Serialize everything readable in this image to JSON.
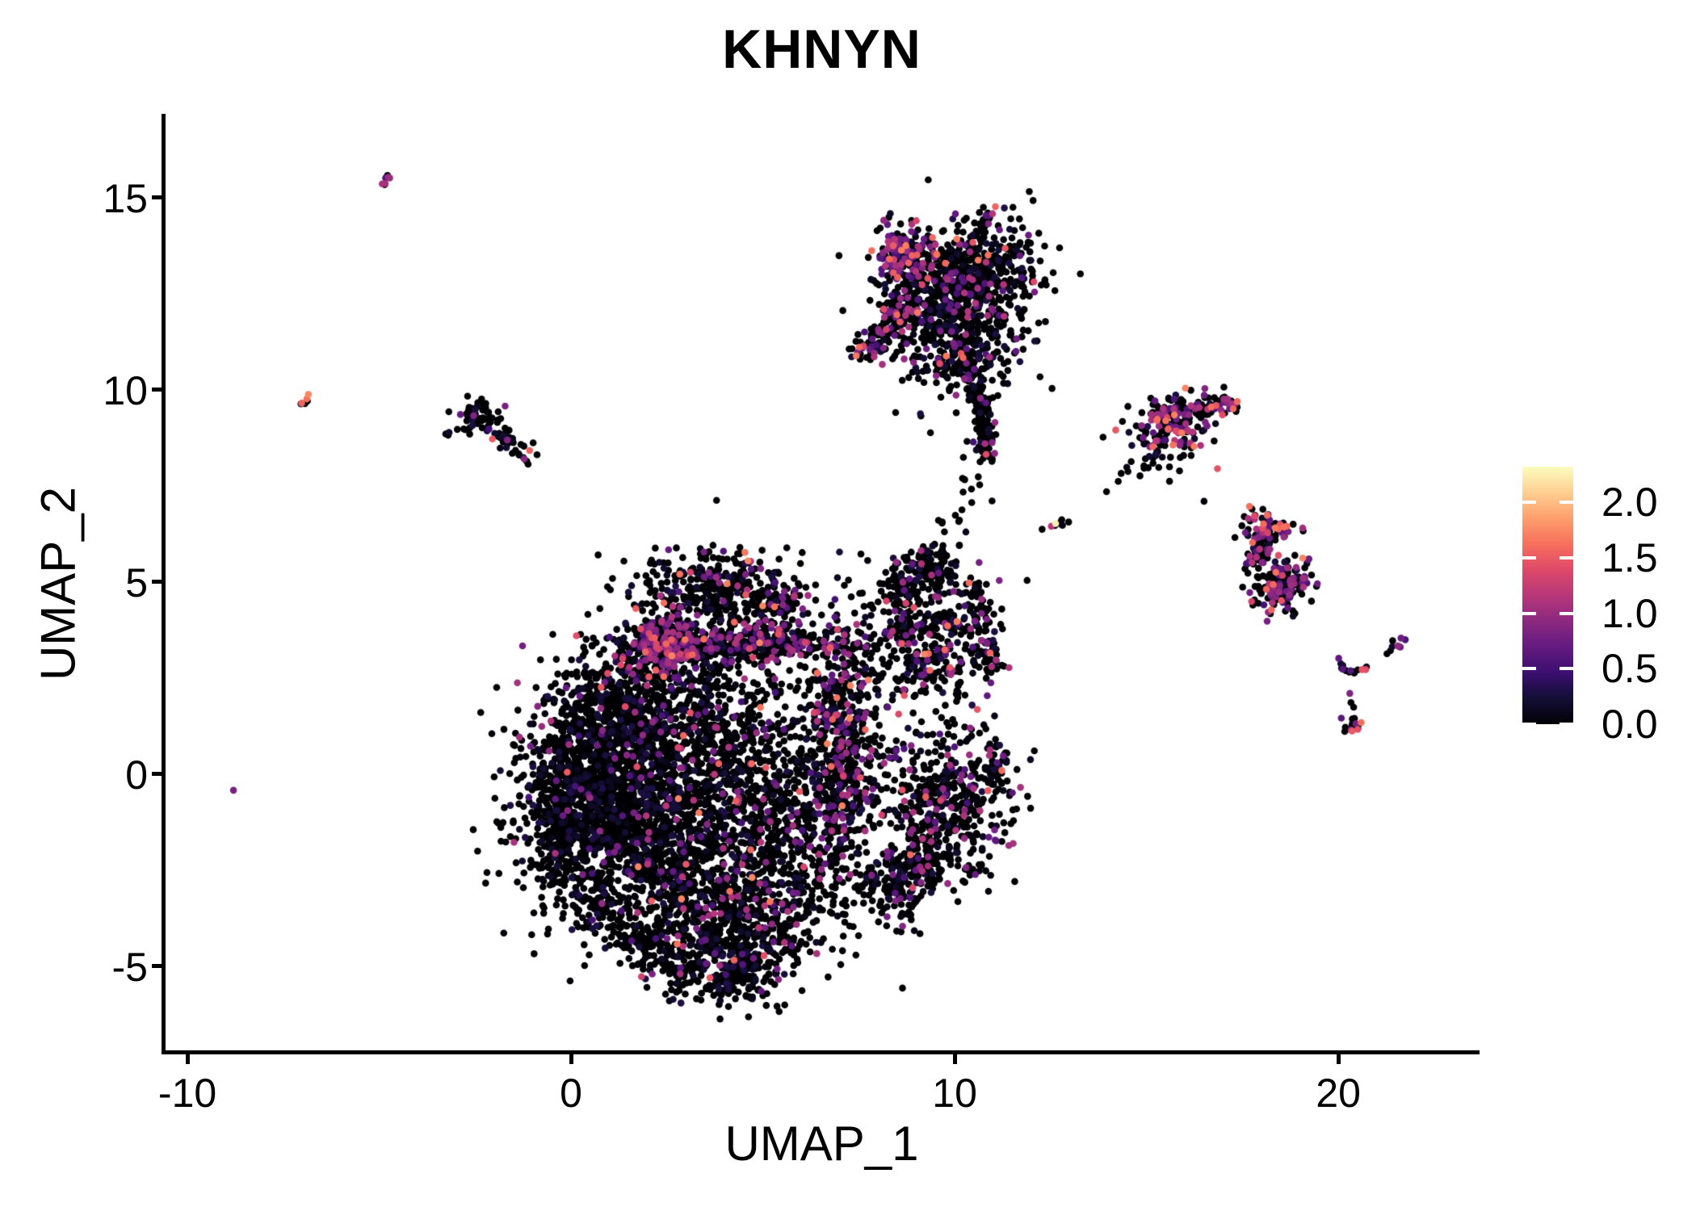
{
  "chart_data": {
    "type": "scatter",
    "title": "KHNYN",
    "xlabel": "UMAP_1",
    "ylabel": "UMAP_2",
    "xlim": [
      -10.57,
      23.64
    ],
    "ylim": [
      -7.23,
      17.14
    ],
    "x_ticks": [
      -10,
      0,
      10,
      20
    ],
    "y_ticks": [
      -5,
      0,
      5,
      10,
      15
    ],
    "grid": false,
    "background": "#ffffff",
    "axis_color": "#000000",
    "point_radius_px": 4.3,
    "seed": 1234,
    "legend_position": "right",
    "colorbar": {
      "min": 0,
      "max": 2.32,
      "ticks": [
        0.0,
        0.5,
        1.0,
        1.5,
        2.0
      ],
      "tick_labels": [
        "0.0",
        "0.5",
        "1.0",
        "1.5",
        "2.0"
      ]
    },
    "colormap": {
      "name": "magma",
      "stops": [
        [
          0.0,
          "#000004"
        ],
        [
          0.1,
          "#140e36"
        ],
        [
          0.2,
          "#3b0f70"
        ],
        [
          0.3,
          "#641a80"
        ],
        [
          0.4,
          "#8c2981"
        ],
        [
          0.5,
          "#b73779"
        ],
        [
          0.6,
          "#de4968"
        ],
        [
          0.7,
          "#f7705c"
        ],
        [
          0.8,
          "#fe9f6d"
        ],
        [
          0.9,
          "#fecf92"
        ],
        [
          1.0,
          "#fcfdbf"
        ]
      ]
    },
    "clusters": [
      {
        "name": "main-left-core",
        "shape": "gauss",
        "center": [
          0.9,
          -0.6
        ],
        "sigma": [
          1.15,
          1.5
        ],
        "n": 1450,
        "colored_frac": 0.03
      },
      {
        "name": "main-left-upper",
        "shape": "gauss",
        "center": [
          1.4,
          1.7
        ],
        "sigma": [
          0.9,
          0.75
        ],
        "n": 420,
        "colored_frac": 0.05
      },
      {
        "name": "main-mid-core",
        "shape": "gauss",
        "center": [
          3.9,
          0.6
        ],
        "sigma": [
          1.4,
          1.6
        ],
        "n": 950,
        "colored_frac": 0.07
      },
      {
        "name": "main-purple-band",
        "shape": "gauss",
        "center": [
          4.5,
          3.4
        ],
        "sigma": [
          1.55,
          0.24
        ],
        "n": 400,
        "colored_frac": 0.28
      },
      {
        "name": "main-band-left",
        "shape": "gauss",
        "center": [
          2.4,
          3.3
        ],
        "sigma": [
          0.55,
          0.42
        ],
        "n": 250,
        "colored_frac": 0.45
      },
      {
        "name": "main-head",
        "shape": "gauss",
        "center": [
          3.7,
          4.8
        ],
        "sigma": [
          1.0,
          0.5
        ],
        "n": 320,
        "colored_frac": 0.1
      },
      {
        "name": "main-head-right",
        "shape": "gauss",
        "center": [
          5.35,
          4.4
        ],
        "sigma": [
          0.45,
          0.35
        ],
        "n": 90,
        "colored_frac": 0.1
      },
      {
        "name": "main-right-band",
        "shape": "gauss",
        "center": [
          7.1,
          1.0
        ],
        "sigma": [
          0.42,
          1.65
        ],
        "n": 500,
        "colored_frac": 0.2
      },
      {
        "name": "main-bottom-lobe",
        "shape": "gauss",
        "center": [
          4.3,
          -3.6
        ],
        "sigma": [
          1.25,
          1.0
        ],
        "n": 800,
        "colored_frac": 0.08
      },
      {
        "name": "main-bottom-tip",
        "shape": "gauss",
        "center": [
          4.3,
          -5.1
        ],
        "sigma": [
          0.6,
          0.42
        ],
        "n": 150,
        "colored_frac": 0.06
      },
      {
        "name": "main-mid-right",
        "shape": "gauss",
        "center": [
          5.9,
          -1.3
        ],
        "sigma": [
          0.95,
          1.0
        ],
        "n": 360,
        "colored_frac": 0.08
      },
      {
        "name": "main-left-rim",
        "shape": "streak",
        "from": [
          -0.45,
          -2.6
        ],
        "to": [
          -0.15,
          0.9
        ],
        "jitter": 0.25,
        "n": 220,
        "colored_frac": 0.02
      },
      {
        "name": "main-bl-rim",
        "shape": "streak",
        "from": [
          0.3,
          -3.1
        ],
        "to": [
          3.2,
          -5.5
        ],
        "jitter": 0.32,
        "n": 200,
        "colored_frac": 0.05
      },
      {
        "name": "main-fill",
        "shape": "gauss",
        "center": [
          2.6,
          -1.9
        ],
        "sigma": [
          0.8,
          0.9
        ],
        "n": 300,
        "colored_frac": 0.05
      },
      {
        "name": "lowright-core",
        "shape": "gauss",
        "center": [
          9.7,
          -0.8
        ],
        "sigma": [
          0.85,
          1.0
        ],
        "n": 500,
        "colored_frac": 0.14
      },
      {
        "name": "lowright-arm",
        "shape": "streak",
        "from": [
          8.25,
          -3.55
        ],
        "to": [
          9.35,
          -2.0
        ],
        "jitter": 0.3,
        "n": 130,
        "colored_frac": 0.1
      },
      {
        "name": "lowright-edge",
        "shape": "streak",
        "from": [
          10.9,
          -0.2
        ],
        "to": [
          11.3,
          0.6
        ],
        "jitter": 0.18,
        "n": 36,
        "colored_frac": 0.1
      },
      {
        "name": "lowright-bridge",
        "shape": "streak",
        "from": [
          7.6,
          -2.9
        ],
        "to": [
          8.7,
          -2.3
        ],
        "jitter": 0.3,
        "n": 60,
        "colored_frac": 0.06
      },
      {
        "name": "rightmid-core",
        "shape": "gauss",
        "center": [
          9.4,
          3.4
        ],
        "sigma": [
          0.8,
          0.85
        ],
        "n": 370,
        "colored_frac": 0.16,
        "pink_frac": 0.18
      },
      {
        "name": "rightmid-ridge",
        "shape": "streak",
        "from": [
          8.05,
          4.6
        ],
        "to": [
          9.5,
          5.5
        ],
        "jitter": 0.26,
        "n": 110,
        "colored_frac": 0.15
      },
      {
        "name": "rightmid-edge",
        "shape": "streak",
        "from": [
          10.95,
          2.6
        ],
        "to": [
          10.55,
          5.1
        ],
        "jitter": 0.22,
        "n": 80,
        "colored_frac": 0.1
      },
      {
        "name": "rightmid-topknot",
        "shape": "gauss",
        "center": [
          9.55,
          5.4
        ],
        "sigma": [
          0.26,
          0.3
        ],
        "n": 55,
        "colored_frac": 0.1
      },
      {
        "name": "trail-up",
        "shape": "streak",
        "from": [
          9.85,
          6.0
        ],
        "to": [
          10.55,
          8.1
        ],
        "jitter": 0.28,
        "n": 24,
        "colored_frac": 0.05
      },
      {
        "name": "top-core",
        "shape": "gauss",
        "center": [
          10.0,
          12.1
        ],
        "sigma": [
          0.95,
          0.95
        ],
        "n": 680,
        "colored_frac": 0.13
      },
      {
        "name": "top-left-colored",
        "shape": "gauss",
        "center": [
          8.62,
          13.5
        ],
        "sigma": [
          0.38,
          0.4
        ],
        "n": 170,
        "colored_frac": 0.5,
        "pink_frac": 0.15
      },
      {
        "name": "top-right",
        "shape": "gauss",
        "center": [
          10.9,
          13.2
        ],
        "sigma": [
          0.68,
          0.55
        ],
        "n": 230,
        "colored_frac": 0.1
      },
      {
        "name": "top-beak",
        "shape": "streak",
        "from": [
          7.55,
          10.9
        ],
        "to": [
          8.95,
          12.35
        ],
        "jitter": 0.22,
        "n": 130,
        "colored_frac": 0.3
      },
      {
        "name": "top-tail",
        "shape": "streak",
        "from": [
          10.55,
          10.15
        ],
        "to": [
          10.85,
          8.4
        ],
        "jitter": 0.15,
        "n": 105,
        "colored_frac": 0.08
      },
      {
        "name": "top-spur",
        "shape": "streak",
        "from": [
          10.7,
          14.15
        ],
        "to": [
          10.95,
          14.72
        ],
        "jitter": 0.1,
        "n": 15,
        "colored_frac": 0.2
      },
      {
        "name": "top-bridge",
        "shape": "gauss",
        "center": [
          10.3,
          10.55
        ],
        "sigma": [
          0.4,
          0.3
        ],
        "n": 60,
        "colored_frac": 0.08
      },
      {
        "name": "chain-mid",
        "shape": "streak",
        "from": [
          12.3,
          6.35
        ],
        "to": [
          12.95,
          6.62
        ],
        "jitter": 0.06,
        "n": 7,
        "colored_frac": 0.0
      },
      {
        "name": "chain-upper",
        "shape": "streak",
        "from": [
          13.4,
          6.95
        ],
        "to": [
          14.9,
          8.1
        ],
        "jitter": 0.12,
        "n": 6,
        "colored_frac": 0.0
      },
      {
        "name": "upright-core",
        "shape": "gauss",
        "center": [
          15.75,
          9.15
        ],
        "sigma": [
          0.42,
          0.38
        ],
        "n": 165,
        "colored_frac": 0.4,
        "pink_frac": 0.2
      },
      {
        "name": "upright-arm",
        "shape": "streak",
        "from": [
          16.3,
          9.45
        ],
        "to": [
          17.35,
          9.7
        ],
        "jitter": 0.14,
        "n": 55,
        "colored_frac": 0.3,
        "pink_frac": 0.2
      },
      {
        "name": "upright-below",
        "shape": "gauss",
        "center": [
          15.05,
          8.5
        ],
        "sigma": [
          0.45,
          0.28
        ],
        "n": 40,
        "colored_frac": 0.05
      },
      {
        "name": "rightB-head",
        "shape": "gauss",
        "center": [
          18.1,
          6.35
        ],
        "sigma": [
          0.3,
          0.22
        ],
        "n": 70,
        "colored_frac": 0.45,
        "pink_frac": 0.3
      },
      {
        "name": "rightB-mid",
        "shape": "streak",
        "from": [
          17.85,
          5.5
        ],
        "to": [
          18.1,
          6.12
        ],
        "jitter": 0.17,
        "n": 55,
        "colored_frac": 0.3
      },
      {
        "name": "rightB-low",
        "shape": "gauss",
        "center": [
          18.55,
          4.95
        ],
        "sigma": [
          0.4,
          0.36
        ],
        "n": 150,
        "colored_frac": 0.4,
        "pink_frac": 0.08
      },
      {
        "name": "farright-dash",
        "shape": "streak",
        "from": [
          21.35,
          3.15
        ],
        "to": [
          21.68,
          3.5
        ],
        "jitter": 0.05,
        "n": 9,
        "colored_frac": 0.5
      },
      {
        "name": "farright-armL",
        "shape": "streak",
        "from": [
          19.9,
          3.0
        ],
        "to": [
          20.35,
          2.62
        ],
        "jitter": 0.07,
        "n": 8,
        "colored_frac": 0.25
      },
      {
        "name": "farright-armR",
        "shape": "streak",
        "from": [
          20.35,
          2.6
        ],
        "to": [
          20.8,
          2.86
        ],
        "jitter": 0.06,
        "n": 7,
        "colored_frac": 0.3
      },
      {
        "name": "farright-bottom",
        "shape": "gauss",
        "center": [
          20.33,
          1.2
        ],
        "sigma": [
          0.14,
          0.17
        ],
        "n": 13,
        "colored_frac": 0.35
      },
      {
        "name": "smallblack-core",
        "shape": "gauss",
        "center": [
          -2.35,
          9.3
        ],
        "sigma": [
          0.3,
          0.22
        ],
        "n": 55,
        "colored_frac": 0.02
      },
      {
        "name": "smallblack-arm",
        "shape": "streak",
        "from": [
          -2.1,
          8.9
        ],
        "to": [
          -1.12,
          8.32
        ],
        "jitter": 0.17,
        "n": 38,
        "colored_frac": 0.06
      },
      {
        "name": "smallblack-spur",
        "shape": "streak",
        "from": [
          -3.25,
          8.85
        ],
        "to": [
          -2.72,
          9.1
        ],
        "jitter": 0.07,
        "n": 8,
        "colored_frac": 0.0
      },
      {
        "name": "tiny-dash-topleft",
        "shape": "streak",
        "from": [
          -5.05,
          15.25
        ],
        "to": [
          -4.72,
          15.6
        ],
        "jitter": 0.05,
        "n": 8,
        "colored_frac": 0.5
      },
      {
        "name": "tiny-dash-left",
        "shape": "streak",
        "from": [
          -7.05,
          9.58
        ],
        "to": [
          -6.78,
          9.85
        ],
        "jitter": 0.05,
        "n": 6,
        "colored_frac": 0.45,
        "pink_frac": 0.9
      }
    ],
    "highlight_points": [
      {
        "x": 12.63,
        "y": 6.52,
        "v": 2.25
      },
      {
        "x": 12.52,
        "y": 6.45,
        "v": 1.15
      },
      {
        "x": -8.8,
        "y": -0.42,
        "v": 0.8
      },
      {
        "x": -2.05,
        "y": 8.72,
        "v": 1.5
      },
      {
        "x": -1.08,
        "y": 8.42,
        "v": 1.55
      },
      {
        "x": -1.22,
        "y": 8.2,
        "v": 0.9
      },
      {
        "x": 16.85,
        "y": 7.95,
        "v": 1.45
      },
      {
        "x": 16.5,
        "y": 7.1,
        "v": 0
      },
      {
        "x": 15.6,
        "y": 7.62,
        "v": 0
      },
      {
        "x": 15.32,
        "y": 7.98,
        "v": 0
      },
      {
        "x": 19.3,
        "y": 4.5,
        "v": 0
      },
      {
        "x": 17.75,
        "y": 6.9,
        "v": 0
      },
      {
        "x": 17.82,
        "y": 6.72,
        "v": 1.4
      },
      {
        "x": 20.3,
        "y": 2.1,
        "v": 0.85
      },
      {
        "x": 20.33,
        "y": 1.86,
        "v": 0
      },
      {
        "x": 20.4,
        "y": 1.74,
        "v": 0
      },
      {
        "x": 20.62,
        "y": 2.72,
        "v": 1.45
      },
      {
        "x": 20.36,
        "y": 1.12,
        "v": 1.5
      },
      {
        "x": 10.06,
        "y": 3.97,
        "v": 1.7
      },
      {
        "x": 15.92,
        "y": 8.88,
        "v": 1.68
      },
      {
        "x": 10.82,
        "y": 8.32,
        "v": 1.4
      },
      {
        "x": 2.1,
        "y": 3.55,
        "v": 1.45
      },
      {
        "x": 2.62,
        "y": 3.5,
        "v": 1.5
      },
      {
        "x": 2.1,
        "y": -3.3,
        "v": 1.5
      },
      {
        "x": 3.62,
        "y": -5.3,
        "v": 1.48
      },
      {
        "x": -0.1,
        "y": 0.05,
        "v": 1.5
      },
      {
        "x": 4.3,
        "y": -0.7,
        "v": 1.5
      },
      {
        "x": 8.4,
        "y": 13.75,
        "v": 1.5
      },
      {
        "x": 8.8,
        "y": 13.3,
        "v": 1.55
      },
      {
        "x": 9.3,
        "y": 12.9,
        "v": 1.45
      },
      {
        "x": 8.15,
        "y": 12.1,
        "v": 1.4
      },
      {
        "x": 9.0,
        "y": 14.4,
        "v": 1.35
      }
    ]
  }
}
